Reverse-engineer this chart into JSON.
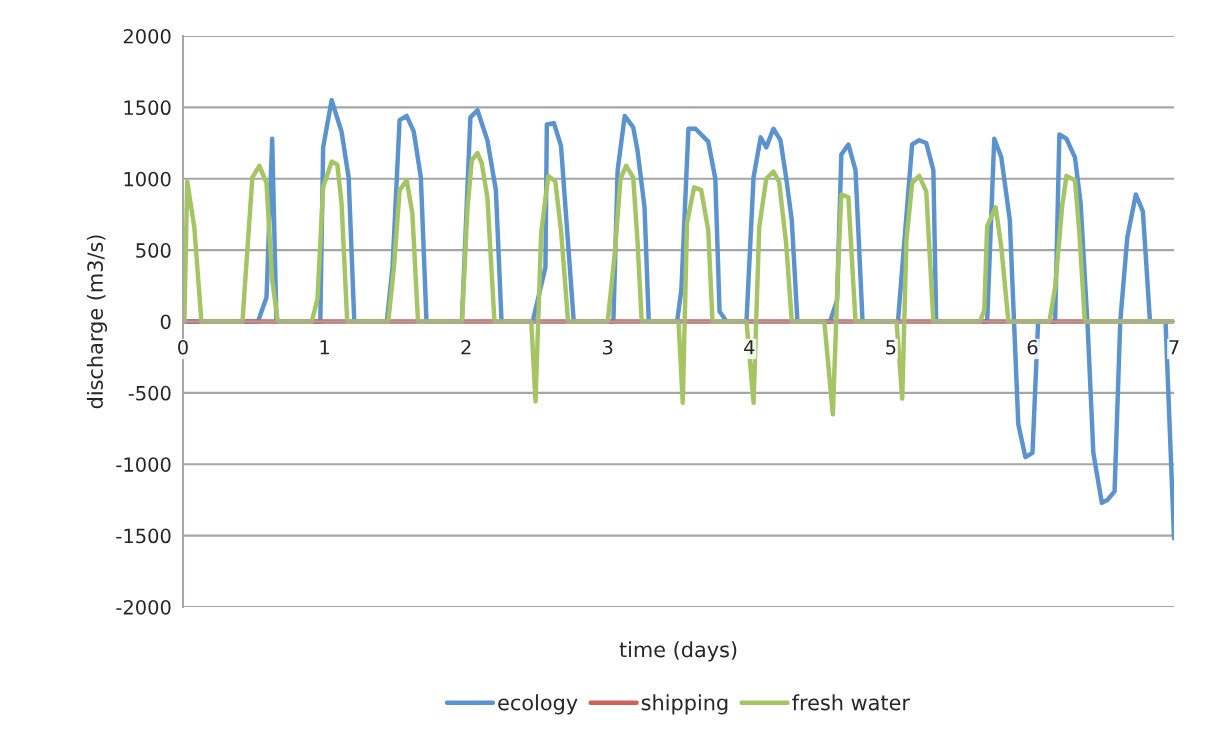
{
  "chart_data": {
    "type": "line",
    "xlabel": "time (days)",
    "ylabel": "discharge (m3/s)",
    "xlim": [
      0,
      7
    ],
    "xticks": [
      0,
      1,
      2,
      3,
      4,
      5,
      6,
      7
    ],
    "ylim": [
      -2000,
      2000
    ],
    "yticks": [
      -2000,
      -1500,
      -1000,
      -500,
      0,
      500,
      1000,
      1500,
      2000
    ],
    "grid": "y",
    "legend": "bottom",
    "marker": "none",
    "line_style": "solid",
    "series": [
      {
        "name": "ecology",
        "color": "#5b93cf",
        "x": [
          0,
          0.53,
          0.59,
          0.63,
          0.66,
          0.97,
          0.99,
          1.05,
          1.12,
          1.17,
          1.21,
          1.44,
          1.48,
          1.53,
          1.58,
          1.63,
          1.68,
          1.72,
          1.97,
          2.03,
          2.08,
          2.15,
          2.21,
          2.25,
          2.47,
          2.56,
          2.57,
          2.62,
          2.67,
          2.76,
          3.04,
          3.07,
          3.12,
          3.18,
          3.21,
          3.26,
          3.29,
          3.49,
          3.52,
          3.57,
          3.62,
          3.71,
          3.76,
          3.79,
          3.84,
          3.98,
          4.03,
          4.08,
          4.12,
          4.17,
          4.22,
          4.26,
          4.3,
          4.34,
          4.57,
          4.62,
          4.65,
          4.7,
          4.75,
          4.8,
          5.05,
          5.15,
          5.2,
          5.25,
          5.3,
          5.32,
          5.68,
          5.73,
          5.78,
          5.84,
          5.9,
          5.95,
          6.0,
          6.04,
          6.16,
          6.19,
          6.24,
          6.3,
          6.34,
          6.39,
          6.43,
          6.49,
          6.53,
          6.58,
          6.62,
          6.67,
          6.73,
          6.78,
          6.83,
          6.94,
          7.0
        ],
        "values": [
          0,
          0,
          170,
          1280,
          0,
          0,
          1220,
          1550,
          1330,
          1010,
          0,
          0,
          380,
          1410,
          1440,
          1330,
          1010,
          0,
          0,
          1430,
          1480,
          1270,
          920,
          0,
          0,
          380,
          1380,
          1390,
          1230,
          0,
          0,
          1060,
          1440,
          1360,
          1200,
          800,
          0,
          0,
          220,
          1350,
          1350,
          1260,
          1000,
          70,
          0,
          0,
          1010,
          1290,
          1220,
          1350,
          1270,
          1010,
          710,
          0,
          0,
          150,
          1170,
          1240,
          1060,
          0,
          0,
          1240,
          1270,
          1250,
          1060,
          0,
          0,
          1280,
          1150,
          710,
          -720,
          -950,
          -920,
          0,
          0,
          1310,
          1280,
          1150,
          830,
          -40,
          -920,
          -1270,
          -1250,
          -1190,
          0,
          590,
          890,
          770,
          0,
          0,
          -1520
        ]
      },
      {
        "name": "shipping",
        "color": "#d0605a",
        "x": [
          0,
          7
        ],
        "values": [
          0,
          0
        ]
      },
      {
        "name": "fresh water",
        "color": "#a5c463",
        "x": [
          0,
          0.01,
          0.03,
          0.08,
          0.13,
          0.42,
          0.49,
          0.54,
          0.59,
          0.63,
          0.67,
          0.91,
          0.95,
          0.99,
          1.05,
          1.09,
          1.12,
          1.16,
          1.45,
          1.49,
          1.53,
          1.58,
          1.62,
          1.66,
          1.97,
          2.01,
          2.04,
          2.08,
          2.11,
          2.15,
          2.2,
          2.46,
          2.49,
          2.53,
          2.58,
          2.63,
          2.67,
          2.72,
          3.0,
          3.05,
          3.09,
          3.13,
          3.18,
          3.21,
          3.24,
          3.5,
          3.53,
          3.56,
          3.61,
          3.66,
          3.71,
          3.74,
          3.98,
          4.03,
          4.07,
          4.12,
          4.17,
          4.21,
          4.26,
          4.3,
          4.53,
          4.59,
          4.63,
          4.65,
          4.7,
          4.75,
          5.04,
          5.08,
          5.11,
          5.15,
          5.2,
          5.25,
          5.3,
          5.63,
          5.66,
          5.68,
          5.74,
          5.78,
          5.83,
          6.12,
          6.16,
          6.21,
          6.24,
          6.3,
          6.33,
          6.37,
          7.0
        ],
        "values": [
          0,
          0,
          980,
          660,
          0,
          0,
          1010,
          1090,
          970,
          290,
          0,
          0,
          160,
          940,
          1120,
          1100,
          830,
          0,
          0,
          380,
          920,
          990,
          760,
          0,
          0,
          800,
          1130,
          1180,
          1110,
          870,
          0,
          0,
          -560,
          620,
          1020,
          980,
          640,
          0,
          0,
          480,
          1000,
          1090,
          1010,
          570,
          0,
          0,
          -570,
          690,
          940,
          920,
          640,
          0,
          0,
          -570,
          660,
          1000,
          1050,
          980,
          550,
          0,
          0,
          -650,
          450,
          890,
          870,
          0,
          0,
          -540,
          570,
          970,
          1020,
          910,
          0,
          0,
          80,
          670,
          800,
          520,
          0,
          0,
          240,
          810,
          1020,
          990,
          640,
          0,
          0
        ]
      }
    ]
  }
}
